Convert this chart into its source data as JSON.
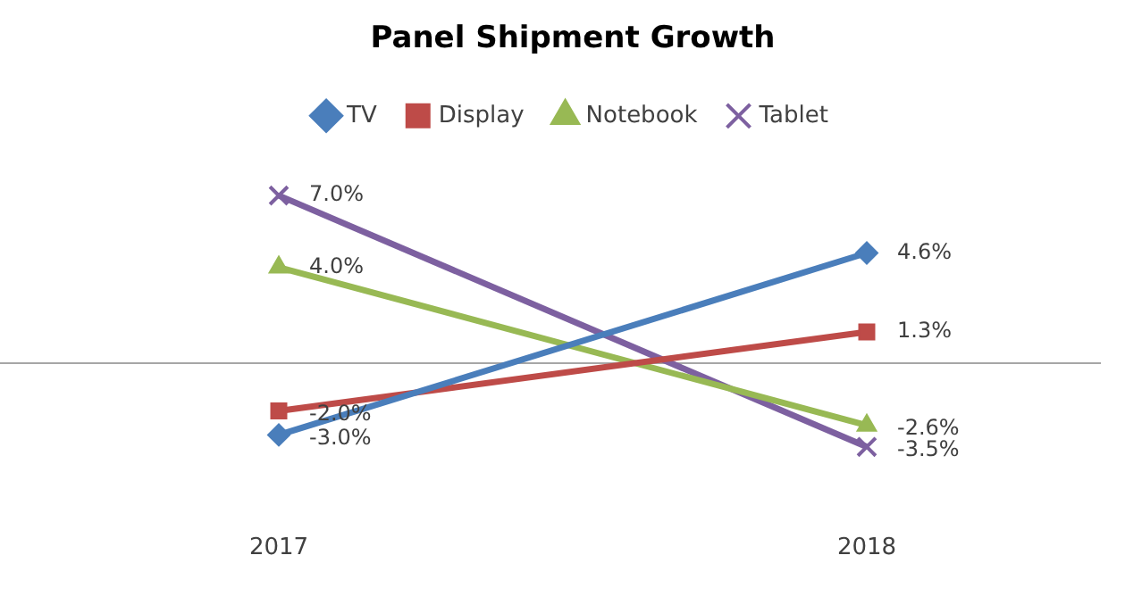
{
  "chart_data": {
    "type": "line",
    "title": "Panel Shipment Growth",
    "categories": [
      "2017",
      "2018"
    ],
    "series": [
      {
        "name": "TV",
        "color": "#4a7ebb",
        "marker": "diamond",
        "values": [
          -3.0,
          4.6
        ],
        "value_labels": [
          "-3.0%",
          "4.6%"
        ]
      },
      {
        "name": "Display",
        "color": "#be4b48",
        "marker": "square",
        "values": [
          -2.0,
          1.3
        ],
        "value_labels": [
          "-2.0%",
          "1.3%"
        ]
      },
      {
        "name": "Notebook",
        "color": "#98b954",
        "marker": "triangle",
        "values": [
          4.0,
          -2.6
        ],
        "value_labels": [
          "4.0%",
          "-2.6%"
        ]
      },
      {
        "name": "Tablet",
        "color": "#7d60a0",
        "marker": "cross",
        "values": [
          7.0,
          -3.5
        ],
        "value_labels": [
          "7.0%",
          "-3.5%"
        ]
      }
    ],
    "ref_lines": [
      {
        "axis": "y",
        "value": 0,
        "color": "#a6a6a6"
      }
    ],
    "legend": "top",
    "grid": false
  }
}
